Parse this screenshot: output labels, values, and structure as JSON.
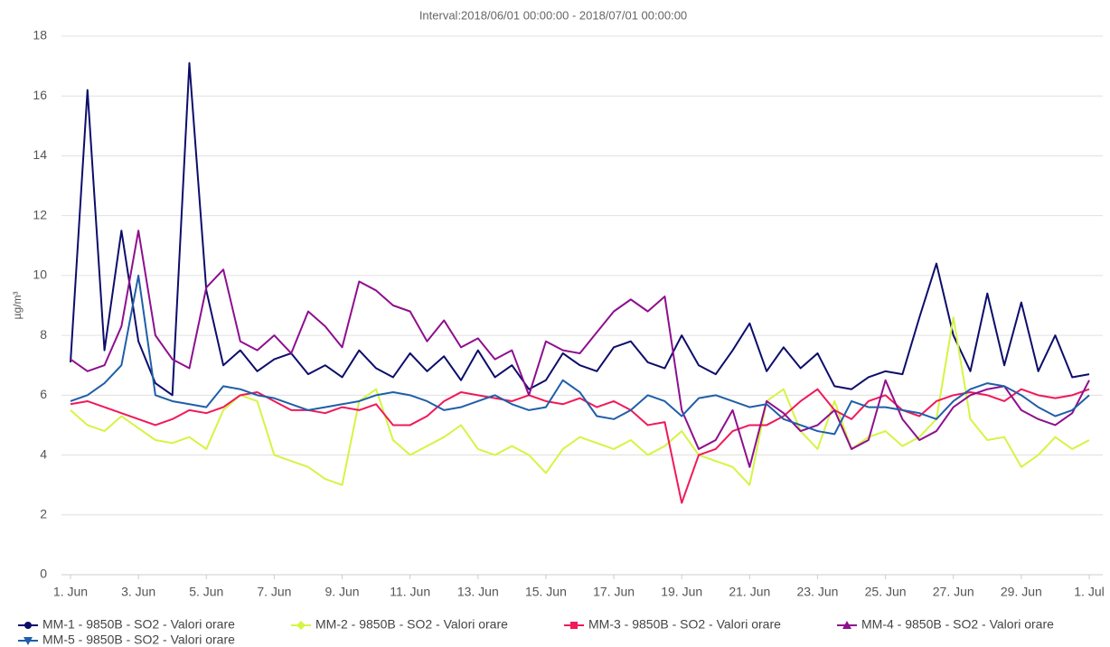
{
  "chart_data": {
    "type": "line",
    "title": "Interval:2018/06/01 00:00:00 - 2018/07/01 00:00:00",
    "y_label": "µg/m³",
    "x": [
      0,
      0.5,
      1,
      1.5,
      2,
      2.5,
      3,
      3.5,
      4,
      4.5,
      5,
      5.5,
      6,
      6.5,
      7,
      7.5,
      8,
      8.5,
      9,
      9.5,
      10,
      10.5,
      11,
      11.5,
      12,
      12.5,
      13,
      13.5,
      14,
      14.5,
      15,
      15.5,
      16,
      16.5,
      17,
      17.5,
      18,
      18.5,
      19,
      19.5,
      20,
      20.5,
      21,
      21.5,
      22,
      22.5,
      23,
      23.5,
      24,
      24.5,
      25,
      25.5,
      26,
      26.5,
      27,
      27.5,
      28,
      28.5,
      29,
      29.5,
      30
    ],
    "xlim": [
      0,
      30
    ],
    "xticks": [
      {
        "value": 0,
        "label": "1. Jun"
      },
      {
        "value": 2,
        "label": "3. Jun"
      },
      {
        "value": 4,
        "label": "5. Jun"
      },
      {
        "value": 6,
        "label": "7. Jun"
      },
      {
        "value": 8,
        "label": "9. Jun"
      },
      {
        "value": 10,
        "label": "11. Jun"
      },
      {
        "value": 12,
        "label": "13. Jun"
      },
      {
        "value": 14,
        "label": "15. Jun"
      },
      {
        "value": 16,
        "label": "17. Jun"
      },
      {
        "value": 18,
        "label": "19. Jun"
      },
      {
        "value": 20,
        "label": "21. Jun"
      },
      {
        "value": 22,
        "label": "23. Jun"
      },
      {
        "value": 24,
        "label": "25. Jun"
      },
      {
        "value": 26,
        "label": "27. Jun"
      },
      {
        "value": 28,
        "label": "29. Jun"
      },
      {
        "value": 30,
        "label": "1. Jul"
      }
    ],
    "ylim": [
      0,
      18
    ],
    "yticks": [
      0,
      2,
      4,
      6,
      8,
      10,
      12,
      14,
      16,
      18
    ],
    "grid": true,
    "series": [
      {
        "name": "MM-1 - 9850B - SO2 - Valori orare",
        "color": "#0d0d6b",
        "marker": "circle",
        "values": [
          7.1,
          16.2,
          7.5,
          11.5,
          7.8,
          6.4,
          6.0,
          17.1,
          9.5,
          7.0,
          7.5,
          6.8,
          7.2,
          7.4,
          6.7,
          7.0,
          6.6,
          7.5,
          6.9,
          6.6,
          7.4,
          6.8,
          7.3,
          6.5,
          7.5,
          6.6,
          7.0,
          6.2,
          6.5,
          7.4,
          7.0,
          6.8,
          7.6,
          7.8,
          7.1,
          6.9,
          8.0,
          7.0,
          6.7,
          7.5,
          8.4,
          6.8,
          7.6,
          6.9,
          7.4,
          6.3,
          6.2,
          6.6,
          6.8,
          6.7,
          8.6,
          10.4,
          8.0,
          6.8,
          9.4,
          7.0,
          9.1,
          6.8,
          8.0,
          6.6,
          6.7
        ]
      },
      {
        "name": "MM-2 - 9850B - SO2 - Valori orare",
        "color": "#d4f542",
        "marker": "diamond",
        "values": [
          5.5,
          5.0,
          4.8,
          5.3,
          4.9,
          4.5,
          4.4,
          4.6,
          4.2,
          5.5,
          6.0,
          5.8,
          4.0,
          3.8,
          3.6,
          3.2,
          3.0,
          5.8,
          6.2,
          4.5,
          4.0,
          4.3,
          4.6,
          5.0,
          4.2,
          4.0,
          4.3,
          4.0,
          3.4,
          4.2,
          4.6,
          4.4,
          4.2,
          4.5,
          4.0,
          4.3,
          4.8,
          4.0,
          3.8,
          3.6,
          3.0,
          5.8,
          6.2,
          4.8,
          4.2,
          5.8,
          4.2,
          4.6,
          4.8,
          4.3,
          4.6,
          5.2,
          8.6,
          5.2,
          4.5,
          4.6,
          3.6,
          4.0,
          4.6,
          4.2,
          4.5
        ]
      },
      {
        "name": "MM-3 - 9850B - SO2 - Valori orare",
        "color": "#f0195a",
        "marker": "square",
        "values": [
          5.7,
          5.8,
          5.6,
          5.4,
          5.2,
          5.0,
          5.2,
          5.5,
          5.4,
          5.6,
          6.0,
          6.1,
          5.8,
          5.5,
          5.5,
          5.4,
          5.6,
          5.5,
          5.7,
          5.0,
          5.0,
          5.3,
          5.8,
          6.1,
          6.0,
          5.9,
          5.8,
          6.0,
          5.8,
          5.7,
          5.9,
          5.6,
          5.8,
          5.5,
          5.0,
          5.1,
          2.4,
          4.0,
          4.2,
          4.8,
          5.0,
          5.0,
          5.3,
          5.8,
          6.2,
          5.5,
          5.2,
          5.8,
          6.0,
          5.5,
          5.3,
          5.8,
          6.0,
          6.1,
          6.0,
          5.8,
          6.2,
          6.0,
          5.9,
          6.0,
          6.2
        ]
      },
      {
        "name": "MM-4 - 9850B - SO2 - Valori orare",
        "color": "#8e0f8e",
        "marker": "triangle-up",
        "values": [
          7.2,
          6.8,
          7.0,
          8.3,
          11.5,
          8.0,
          7.2,
          6.9,
          9.6,
          10.2,
          7.8,
          7.5,
          8.0,
          7.4,
          8.8,
          8.3,
          7.6,
          9.8,
          9.5,
          9.0,
          8.8,
          7.8,
          8.5,
          7.6,
          7.9,
          7.2,
          7.5,
          6.0,
          7.8,
          7.5,
          7.4,
          8.1,
          8.8,
          9.2,
          8.8,
          9.3,
          5.5,
          4.2,
          4.5,
          5.5,
          3.6,
          5.8,
          5.4,
          4.8,
          5.0,
          5.5,
          4.2,
          4.5,
          6.5,
          5.2,
          4.5,
          4.8,
          5.6,
          6.0,
          6.2,
          6.3,
          5.5,
          5.2,
          5.0,
          5.4,
          6.5
        ]
      },
      {
        "name": "MM-5 - 9850B - SO2 - Valori orare",
        "color": "#1f5fa8",
        "marker": "triangle-down",
        "values": [
          5.8,
          6.0,
          6.4,
          7.0,
          10.0,
          6.0,
          5.8,
          5.7,
          5.6,
          6.3,
          6.2,
          6.0,
          5.9,
          5.7,
          5.5,
          5.6,
          5.7,
          5.8,
          6.0,
          6.1,
          6.0,
          5.8,
          5.5,
          5.6,
          5.8,
          6.0,
          5.7,
          5.5,
          5.6,
          6.5,
          6.1,
          5.3,
          5.2,
          5.5,
          6.0,
          5.8,
          5.3,
          5.9,
          6.0,
          5.8,
          5.6,
          5.7,
          5.2,
          5.0,
          4.8,
          4.7,
          5.8,
          5.6,
          5.6,
          5.5,
          5.4,
          5.2,
          5.8,
          6.2,
          6.4,
          6.3,
          6.0,
          5.6,
          5.3,
          5.5,
          6.0
        ]
      }
    ]
  }
}
